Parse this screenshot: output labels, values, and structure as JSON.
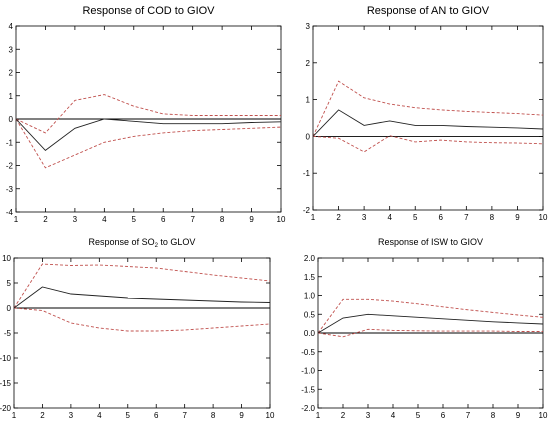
{
  "colors": {
    "response": "#222222",
    "band": "#c0504d",
    "zero": "#000000",
    "frame": "#000000"
  },
  "chart_data": [
    {
      "type": "line",
      "title": "Response of COD to GIOV",
      "title_size": "large",
      "x": [
        1,
        2,
        3,
        4,
        5,
        6,
        7,
        8,
        9,
        10
      ],
      "xticks": [
        1,
        2,
        3,
        4,
        5,
        6,
        7,
        8,
        9,
        10
      ],
      "ylim": [
        -4,
        4
      ],
      "yticks": [
        -4,
        -3,
        -2,
        -1,
        0,
        1,
        2,
        3,
        4
      ],
      "response": [
        0,
        -1.35,
        -0.4,
        0.0,
        -0.1,
        -0.2,
        -0.2,
        -0.2,
        -0.15,
        -0.12
      ],
      "upper": [
        0,
        -0.6,
        0.8,
        1.05,
        0.55,
        0.22,
        0.15,
        0.15,
        0.15,
        0.15
      ],
      "lower": [
        0,
        -2.1,
        -1.55,
        -1.0,
        -0.75,
        -0.6,
        -0.5,
        -0.45,
        -0.4,
        -0.35
      ]
    },
    {
      "type": "line",
      "title": "Response of AN to GIOV",
      "title_size": "large",
      "x": [
        1,
        2,
        3,
        4,
        5,
        6,
        7,
        8,
        9,
        10
      ],
      "xticks": [
        1,
        2,
        3,
        4,
        5,
        6,
        7,
        8,
        9,
        10
      ],
      "ylim": [
        -2,
        3
      ],
      "yticks": [
        -2,
        -1,
        0,
        1,
        2,
        3
      ],
      "response": [
        0,
        0.72,
        0.3,
        0.42,
        0.3,
        0.3,
        0.27,
        0.25,
        0.23,
        0.2
      ],
      "upper": [
        0,
        1.5,
        1.05,
        0.88,
        0.78,
        0.72,
        0.68,
        0.65,
        0.62,
        0.58
      ],
      "lower": [
        0,
        -0.05,
        -0.42,
        0.02,
        -0.15,
        -0.1,
        -0.15,
        -0.17,
        -0.18,
        -0.2
      ]
    },
    {
      "type": "line",
      "title": "Response of SO",
      "title_sub": "2",
      "title_end": " to GLOV",
      "title_size": "small",
      "x": [
        1,
        2,
        3,
        4,
        5,
        6,
        7,
        8,
        9,
        10
      ],
      "xticks": [
        1,
        2,
        3,
        4,
        5,
        6,
        7,
        8,
        9,
        10
      ],
      "ylim": [
        -20,
        10
      ],
      "yticks": [
        -20,
        -15,
        -10,
        -5,
        0,
        5,
        10
      ],
      "response": [
        0,
        4.2,
        2.8,
        2.4,
        2.0,
        1.8,
        1.6,
        1.4,
        1.2,
        1.1
      ],
      "upper": [
        0,
        8.8,
        8.5,
        8.6,
        8.3,
        8.0,
        7.3,
        6.6,
        6.0,
        5.4
      ],
      "lower": [
        0,
        -0.5,
        -3.0,
        -4.0,
        -4.6,
        -4.6,
        -4.4,
        -4.0,
        -3.6,
        -3.2
      ]
    },
    {
      "type": "line",
      "title": "Response of ISW to GIOV",
      "title_size": "small",
      "x": [
        1,
        2,
        3,
        4,
        5,
        6,
        7,
        8,
        9,
        10
      ],
      "xticks": [
        1,
        2,
        3,
        4,
        5,
        6,
        7,
        8,
        9,
        10
      ],
      "ylim": [
        -2.0,
        2.0
      ],
      "yticks": [
        "-2.0",
        "-1.5",
        "-1.0",
        "-0.5",
        "0.0",
        "0.5",
        "1.0",
        "1.5",
        "2.0"
      ],
      "response": [
        0,
        0.4,
        0.5,
        0.46,
        0.42,
        0.38,
        0.34,
        0.3,
        0.27,
        0.24
      ],
      "upper": [
        0,
        0.9,
        0.9,
        0.85,
        0.78,
        0.7,
        0.62,
        0.55,
        0.48,
        0.42
      ],
      "lower": [
        0,
        -0.1,
        0.1,
        0.07,
        0.06,
        0.05,
        0.05,
        0.05,
        0.04,
        0.04
      ]
    }
  ]
}
